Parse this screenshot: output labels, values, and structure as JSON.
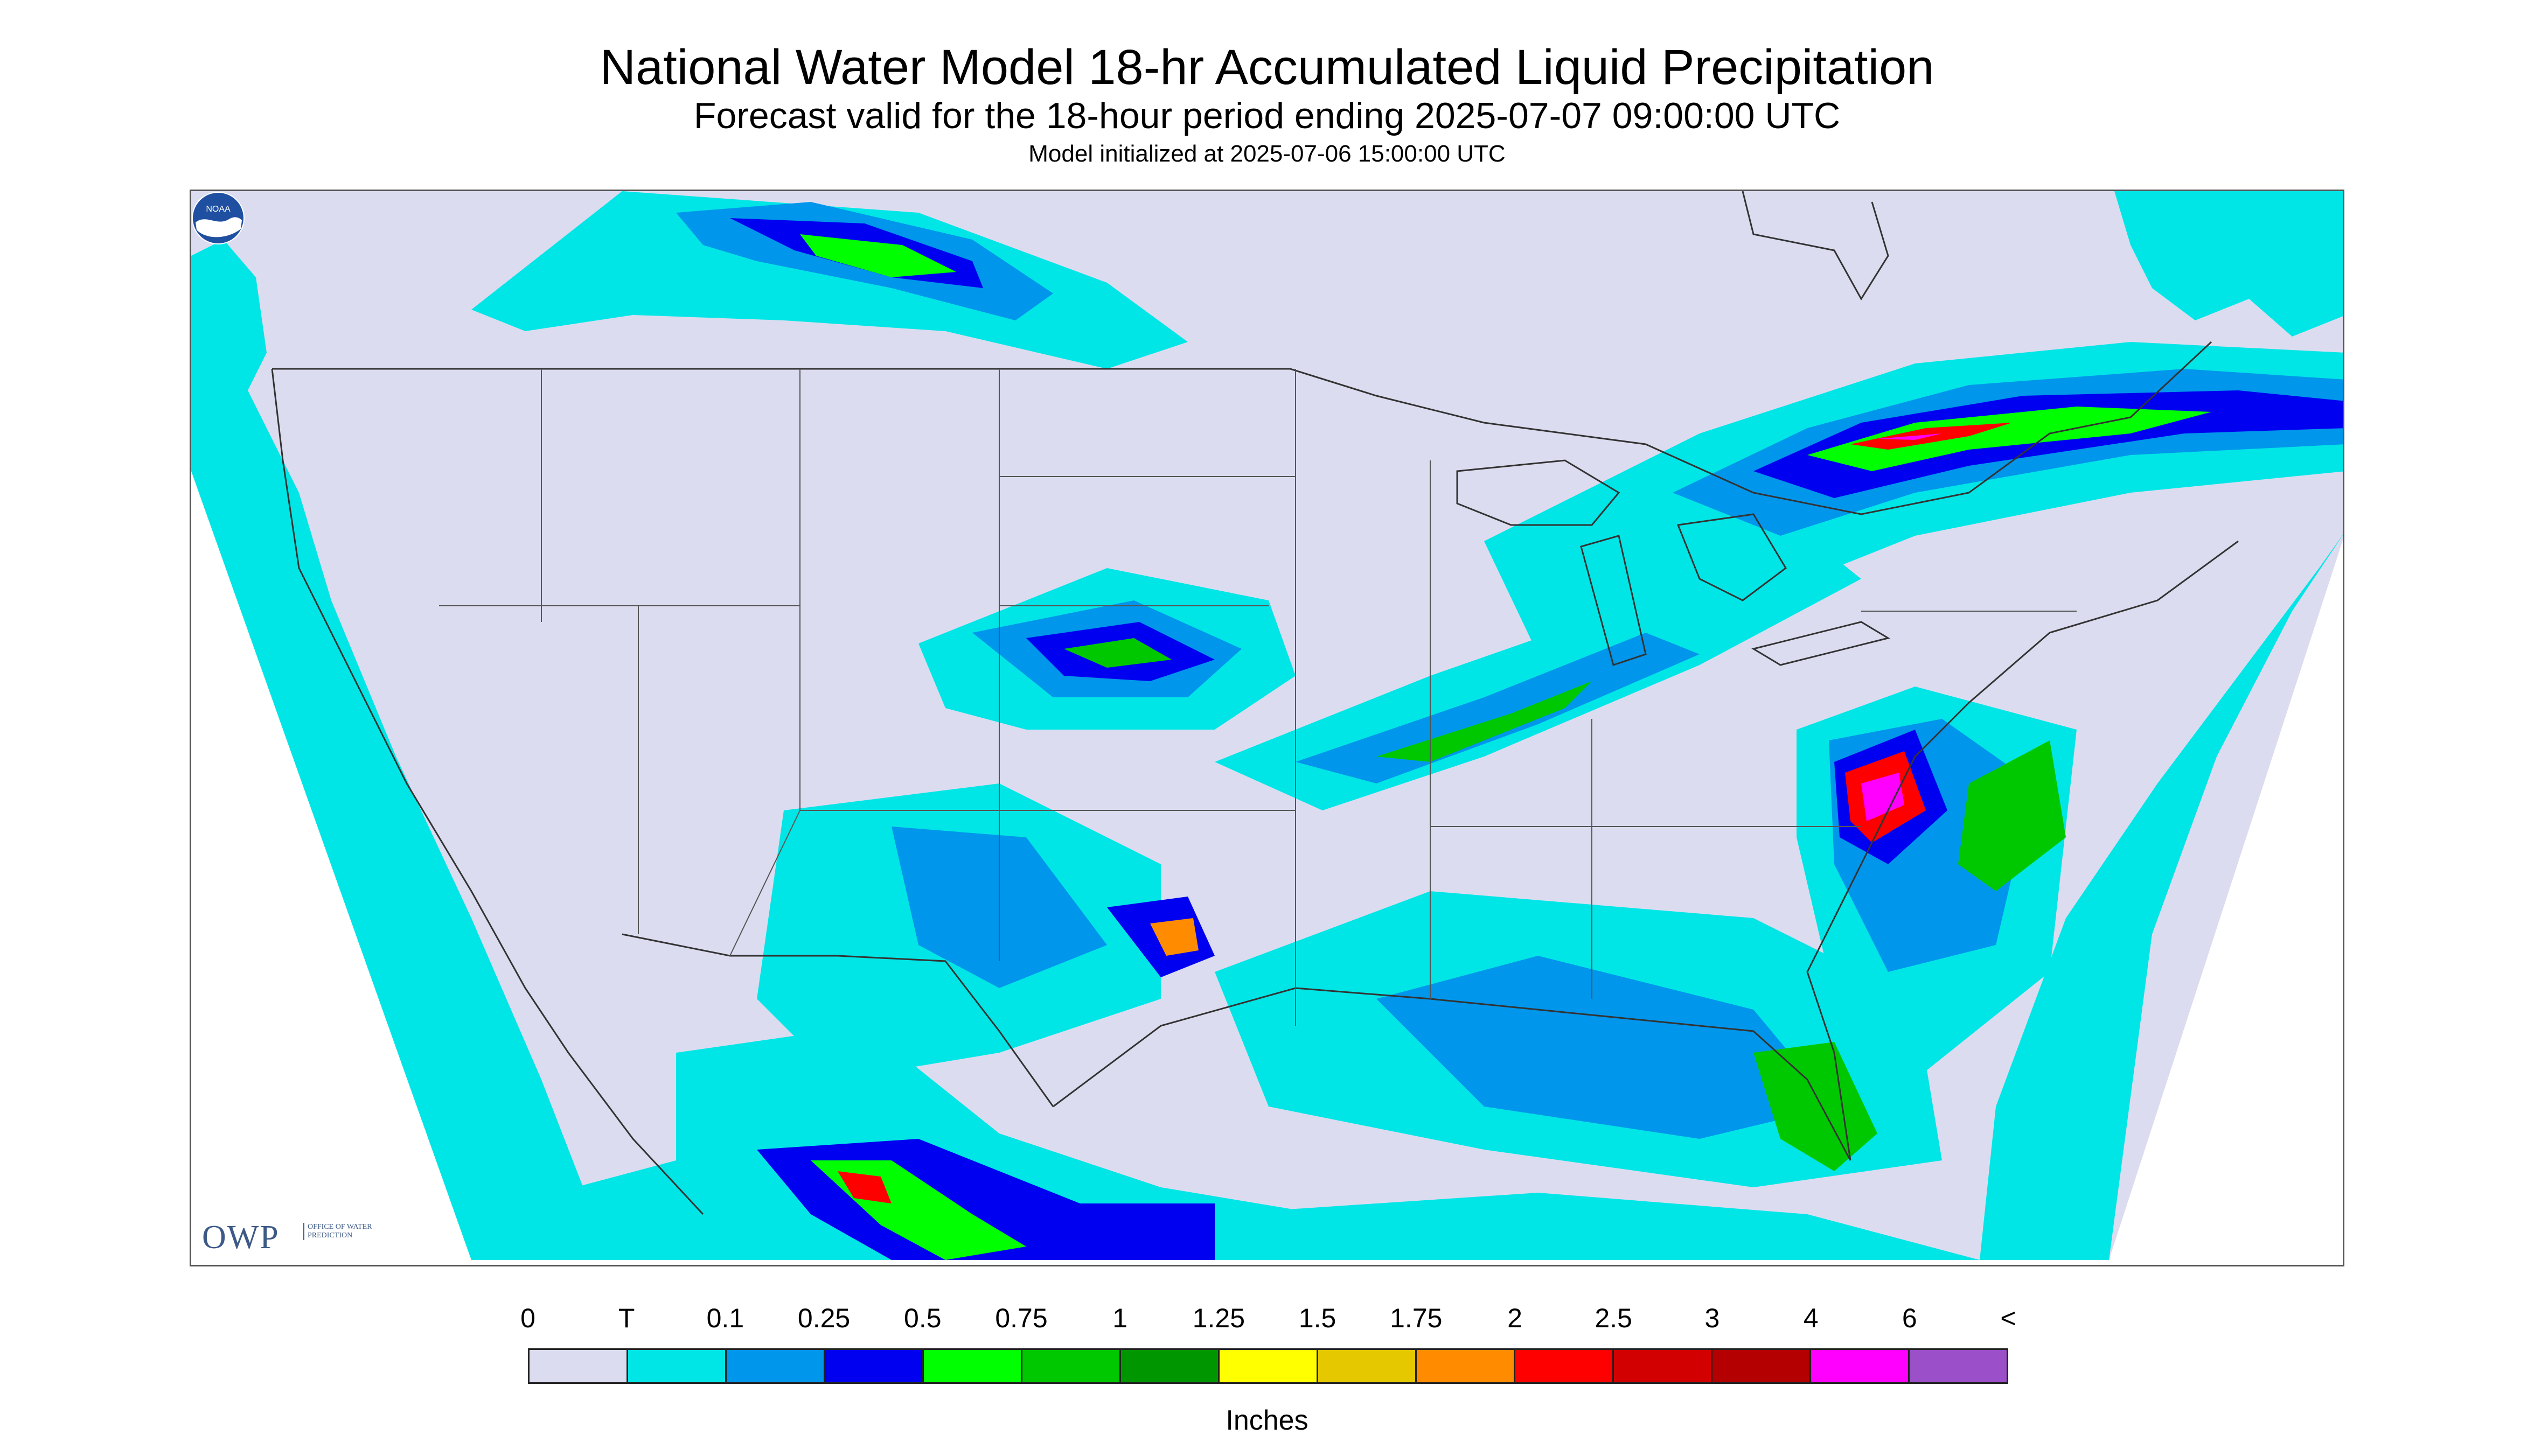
{
  "header": {
    "title": "National Water Model 18-hr Accumulated Liquid Precipitation",
    "subtitle": "Forecast valid for the 18-hour period ending 2025-07-07 09:00:00 UTC",
    "init": "Model initialized at 2025-07-06 15:00:00 UTC"
  },
  "logos": {
    "owp_mark": "OWP",
    "owp_text": "Office of Water Prediction",
    "noaa": "NOAA"
  },
  "legend": {
    "units": "Inches",
    "labels": [
      "0",
      "T",
      "0.1",
      "0.25",
      "0.5",
      "0.75",
      "1",
      "1.25",
      "1.5",
      "1.75",
      "2",
      "2.5",
      "3",
      "4",
      "6",
      "<"
    ],
    "colors": [
      "#dcdcf0",
      "#00e6e6",
      "#0096eb",
      "#0000f0",
      "#00ff00",
      "#00c800",
      "#009600",
      "#ffff00",
      "#e6c800",
      "#ff8c00",
      "#ff0000",
      "#d20000",
      "#b40000",
      "#ff00ff",
      "#9b4fc8"
    ]
  },
  "map": {
    "background": "#ffffff",
    "domain_color": "#dcdcf0",
    "ocean_trace_color": "#00e6e6",
    "boundary_color": "#333333"
  }
}
